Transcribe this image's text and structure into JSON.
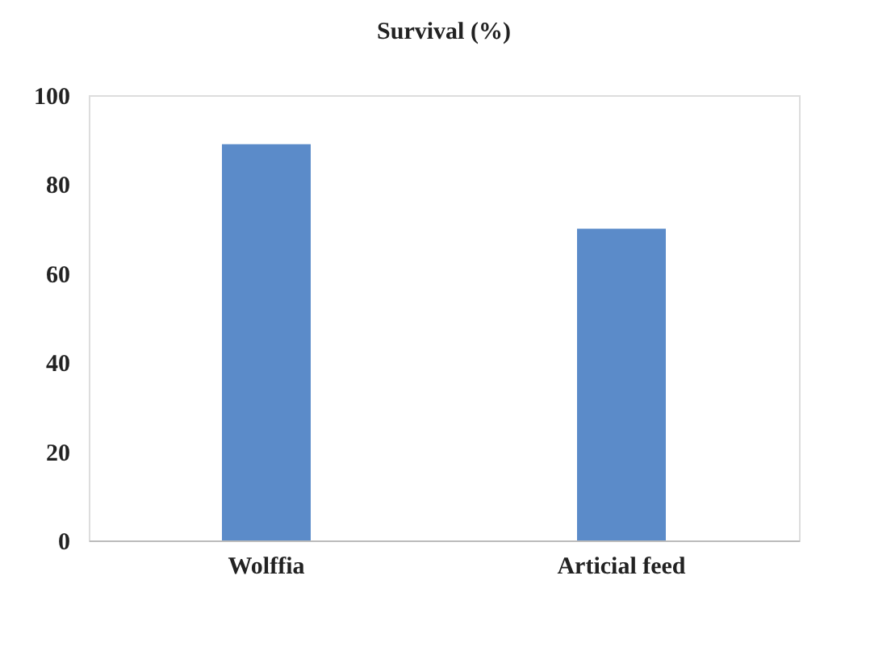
{
  "chart_data": {
    "type": "bar",
    "title": "Survival (%)",
    "categories": [
      "Wolffia",
      "Articial feed"
    ],
    "values": [
      89,
      70
    ],
    "color": "#5b8bc9",
    "ylim": [
      0,
      100
    ],
    "yticks": [
      0,
      20,
      40,
      60,
      80,
      100
    ],
    "grid": false
  }
}
